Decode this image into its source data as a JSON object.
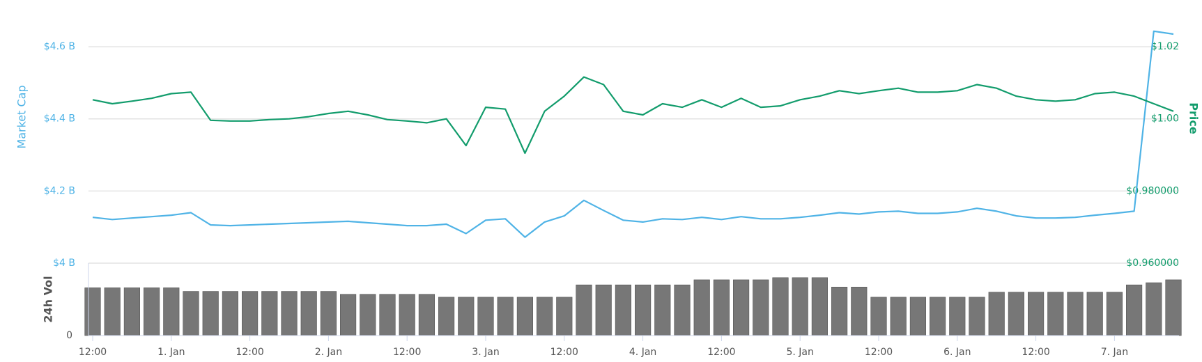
{
  "chart_data": [
    {
      "type": "line",
      "ylabel": "Market Cap",
      "y2label": "Price",
      "categories": [
        "12:00",
        null,
        null,
        null,
        "1. Jan",
        null,
        null,
        null,
        "12:00",
        null,
        null,
        null,
        "2. Jan",
        null,
        null,
        null,
        "12:00",
        null,
        null,
        null,
        "3. Jan",
        null,
        null,
        null,
        "12:00",
        null,
        null,
        null,
        "4. Jan",
        null,
        null,
        null,
        "12:00",
        null,
        null,
        null,
        "5. Jan",
        null,
        null,
        null,
        "12:00",
        null,
        null,
        null,
        "6. Jan",
        null,
        null,
        null,
        "12:00",
        null,
        null,
        null,
        "7. Jan",
        null,
        null,
        null
      ],
      "ylim": [
        4,
        4.66
      ],
      "yticks": [
        {
          "value": 4,
          "label": "$4 B"
        },
        {
          "value": 4.2,
          "label": "$4.2 B"
        },
        {
          "value": 4.4,
          "label": "$4.4 B"
        },
        {
          "value": 4.6,
          "label": "$4.6 B"
        }
      ],
      "y2lim": [
        0.96,
        1.026
      ],
      "y2ticks": [
        {
          "value": 0.96,
          "label": "$0.960000"
        },
        {
          "value": 0.98,
          "label": "$0.980000"
        },
        {
          "value": 1.0,
          "label": "$1.00"
        },
        {
          "value": 1.02,
          "label": "$1.02"
        }
      ],
      "grid": true,
      "series": [
        {
          "color": "#4fb3e6",
          "axis": "y",
          "values": [
            4.127,
            4.121,
            4.125,
            4.129,
            4.133,
            4.14,
            4.106,
            4.104,
            4.106,
            4.108,
            4.11,
            4.112,
            4.114,
            4.116,
            4.112,
            4.108,
            4.104,
            4.104,
            4.108,
            4.082,
            4.119,
            4.123,
            4.072,
            4.114,
            4.131,
            4.174,
            4.146,
            4.119,
            4.114,
            4.123,
            4.121,
            4.127,
            4.121,
            4.129,
            4.123,
            4.123,
            4.127,
            4.133,
            4.14,
            4.136,
            4.142,
            4.144,
            4.138,
            4.138,
            4.142,
            4.152,
            4.144,
            4.131,
            4.125,
            4.125,
            4.127,
            4.133,
            4.138,
            4.144,
            4.643,
            4.635
          ]
        },
        {
          "color": "#129c6c",
          "axis": "y2",
          "values": [
            1.0053,
            1.0042,
            1.0049,
            1.0057,
            1.007,
            1.0074,
            0.9996,
            0.9994,
            0.9994,
            0.9998,
            1.0,
            1.0006,
            1.0015,
            1.0021,
            1.0011,
            0.9998,
            0.9994,
            0.9989,
            1.0,
            0.9926,
            1.0032,
            1.0027,
            0.9905,
            1.0021,
            1.0063,
            1.0116,
            1.0095,
            1.0021,
            1.0011,
            1.0042,
            1.0032,
            1.0053,
            1.0032,
            1.0057,
            1.0032,
            1.0036,
            1.0053,
            1.0063,
            1.0078,
            1.007,
            1.0078,
            1.0085,
            1.0074,
            1.0074,
            1.0078,
            1.0095,
            1.0085,
            1.0063,
            1.0053,
            1.0049,
            1.0053,
            1.007,
            1.0074,
            1.0063,
            1.0042,
            1.0021
          ]
        }
      ]
    },
    {
      "type": "bar",
      "ylabel": "24h Vol",
      "ylim": [
        0,
        100
      ],
      "yticks": [
        0
      ],
      "color": "#777777",
      "values": [
        66,
        66,
        66,
        66,
        66,
        61,
        61,
        61,
        61,
        61,
        61,
        61,
        61,
        57,
        57,
        57,
        57,
        57,
        53,
        53,
        53,
        53,
        53,
        53,
        53,
        70,
        70,
        70,
        70,
        70,
        70,
        77,
        77,
        77,
        77,
        80,
        80,
        80,
        67,
        67,
        53,
        53,
        53,
        53,
        53,
        53,
        60,
        60,
        60,
        60,
        60,
        60,
        60,
        70,
        73,
        77
      ]
    }
  ]
}
